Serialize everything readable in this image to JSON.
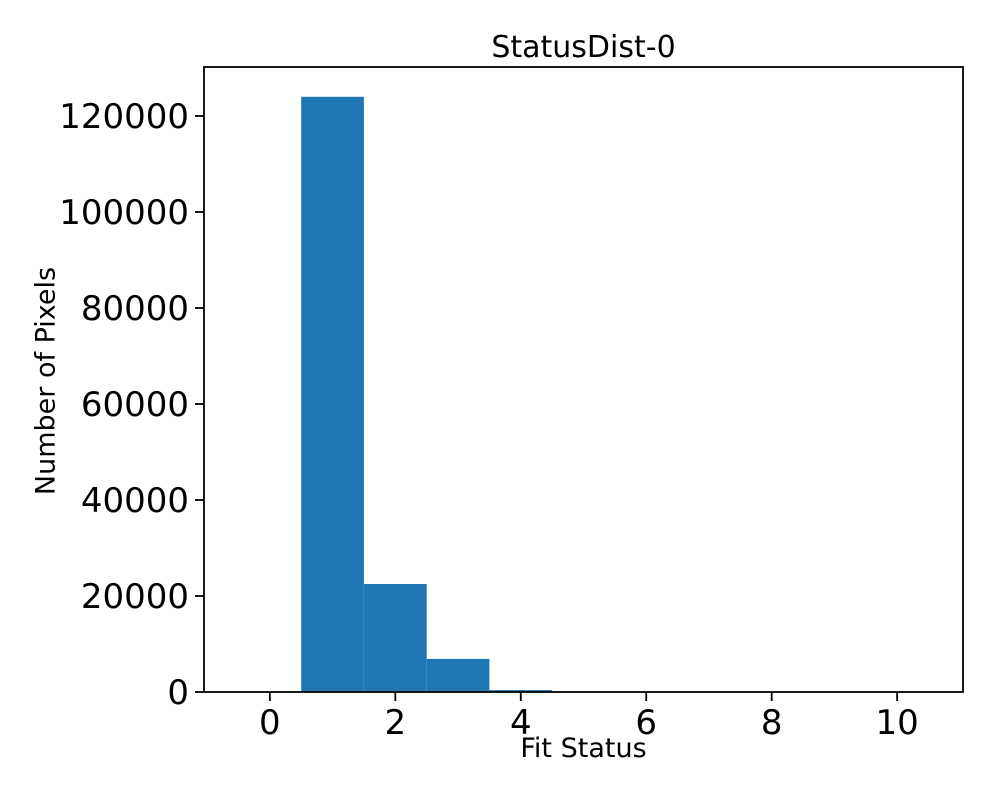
{
  "chart_data": {
    "type": "bar",
    "subtype": "histogram",
    "title": "StatusDist-0",
    "xlabel": "Fit Status",
    "ylabel": "Number of Pixels",
    "bin_centers": [
      0,
      1,
      2,
      3,
      4,
      5,
      6,
      7,
      8,
      9,
      10
    ],
    "bin_width": 1,
    "counts": [
      0,
      124000,
      22500,
      6900,
      400,
      0,
      0,
      0,
      0,
      0,
      0
    ],
    "xticks": [
      0,
      2,
      4,
      6,
      8,
      10
    ],
    "yticks": [
      0,
      20000,
      40000,
      60000,
      80000,
      100000,
      120000
    ],
    "xlim": [
      -1.05,
      11.05
    ],
    "ylim": [
      0,
      130200
    ],
    "bar_color": "#1f77b4",
    "axis_color": "#000000",
    "background_color": "#ffffff",
    "grid": false,
    "legend": null
  }
}
